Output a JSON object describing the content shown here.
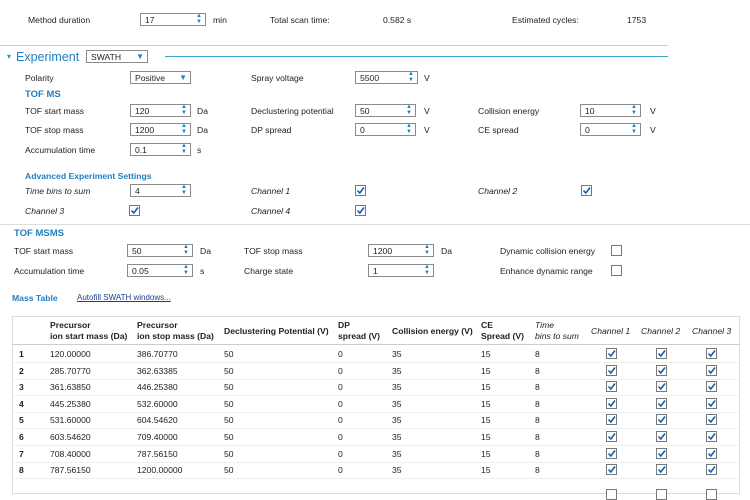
{
  "header": {
    "method_duration": {
      "label": "Method duration",
      "value": "17",
      "unit": "min"
    },
    "total_scan_time": {
      "label": "Total scan time:",
      "value": "0.582 s"
    },
    "estimated_cycles": {
      "label": "Estimated cycles:",
      "value": "1753"
    }
  },
  "experiment": {
    "title": "Experiment",
    "mode": "SWATH",
    "polarity": {
      "label": "Polarity",
      "value": "Positive"
    },
    "spray_voltage": {
      "label": "Spray voltage",
      "value": "5500",
      "unit": "V"
    }
  },
  "tof_ms": {
    "heading": "TOF MS",
    "fields": [
      {
        "label": "TOF start mass",
        "value": "120",
        "unit": "Da"
      },
      {
        "label": "Declustering potential",
        "value": "50",
        "unit": "V"
      },
      {
        "label": "Collision energy",
        "value": "10",
        "unit": "V"
      },
      {
        "label": "TOF stop mass",
        "value": "1200",
        "unit": "Da"
      },
      {
        "label": "DP spread",
        "value": "0",
        "unit": "V"
      },
      {
        "label": "CE spread",
        "value": "0",
        "unit": "V"
      },
      {
        "label": "Accumulation time",
        "value": "0.1",
        "unit": "s"
      }
    ]
  },
  "advanced": {
    "heading": "Advanced Experiment Settings",
    "time_bins": {
      "label": "Time bins to sum",
      "value": "4"
    },
    "channels": [
      {
        "label": "Channel 1",
        "checked": true
      },
      {
        "label": "Channel 2",
        "checked": true
      },
      {
        "label": "Channel 3",
        "checked": true
      },
      {
        "label": "Channel 4",
        "checked": true
      }
    ]
  },
  "tof_msms": {
    "heading": "TOF MSMS",
    "fields": [
      {
        "label": "TOF start mass",
        "value": "50",
        "unit": "Da"
      },
      {
        "label": "TOF stop mass",
        "value": "1200",
        "unit": "Da"
      },
      {
        "label": "Accumulation time",
        "value": "0.05",
        "unit": "s"
      },
      {
        "label": "Charge state",
        "value": "1"
      }
    ],
    "checks": [
      {
        "label": "Dynamic collision energy",
        "checked": false
      },
      {
        "label": "Enhance dynamic range",
        "checked": false
      }
    ]
  },
  "mass_table": {
    "title": "Mass Table",
    "link": "Autofill SWATH windows...",
    "columns": [
      "Precursor\nion start mass (Da)",
      "Precursor\nion stop mass (Da)",
      "Declustering Potential (V)",
      "DP\nspread (V)",
      "Collision energy (V)",
      "CE\nSpread (V)",
      "Time\nbins to sum",
      "Channel 1",
      "Channel 2",
      "Channel 3"
    ],
    "rows": [
      [
        "1",
        "120.00000",
        "386.70770",
        "50",
        "0",
        "35",
        "15",
        "8"
      ],
      [
        "2",
        "285.70770",
        "362.63385",
        "50",
        "0",
        "35",
        "15",
        "8"
      ],
      [
        "3",
        "361.63850",
        "446.25380",
        "50",
        "0",
        "35",
        "15",
        "8"
      ],
      [
        "4",
        "445.25380",
        "532.60000",
        "50",
        "0",
        "35",
        "15",
        "8"
      ],
      [
        "5",
        "531.60000",
        "604.54620",
        "50",
        "0",
        "35",
        "15",
        "8"
      ],
      [
        "6",
        "603.54620",
        "709.40000",
        "50",
        "0",
        "35",
        "15",
        "8"
      ],
      [
        "7",
        "708.40000",
        "787.56150",
        "50",
        "0",
        "35",
        "15",
        "8"
      ],
      [
        "8",
        "787.56150",
        "1200.00000",
        "50",
        "0",
        "35",
        "15",
        "8"
      ]
    ],
    "channels": [
      [
        true,
        true,
        true
      ],
      [
        true,
        true,
        true
      ],
      [
        true,
        true,
        true
      ],
      [
        true,
        true,
        true
      ],
      [
        true,
        true,
        true
      ],
      [
        true,
        true,
        true
      ],
      [
        true,
        true,
        true
      ],
      [
        true,
        true,
        true
      ]
    ]
  }
}
